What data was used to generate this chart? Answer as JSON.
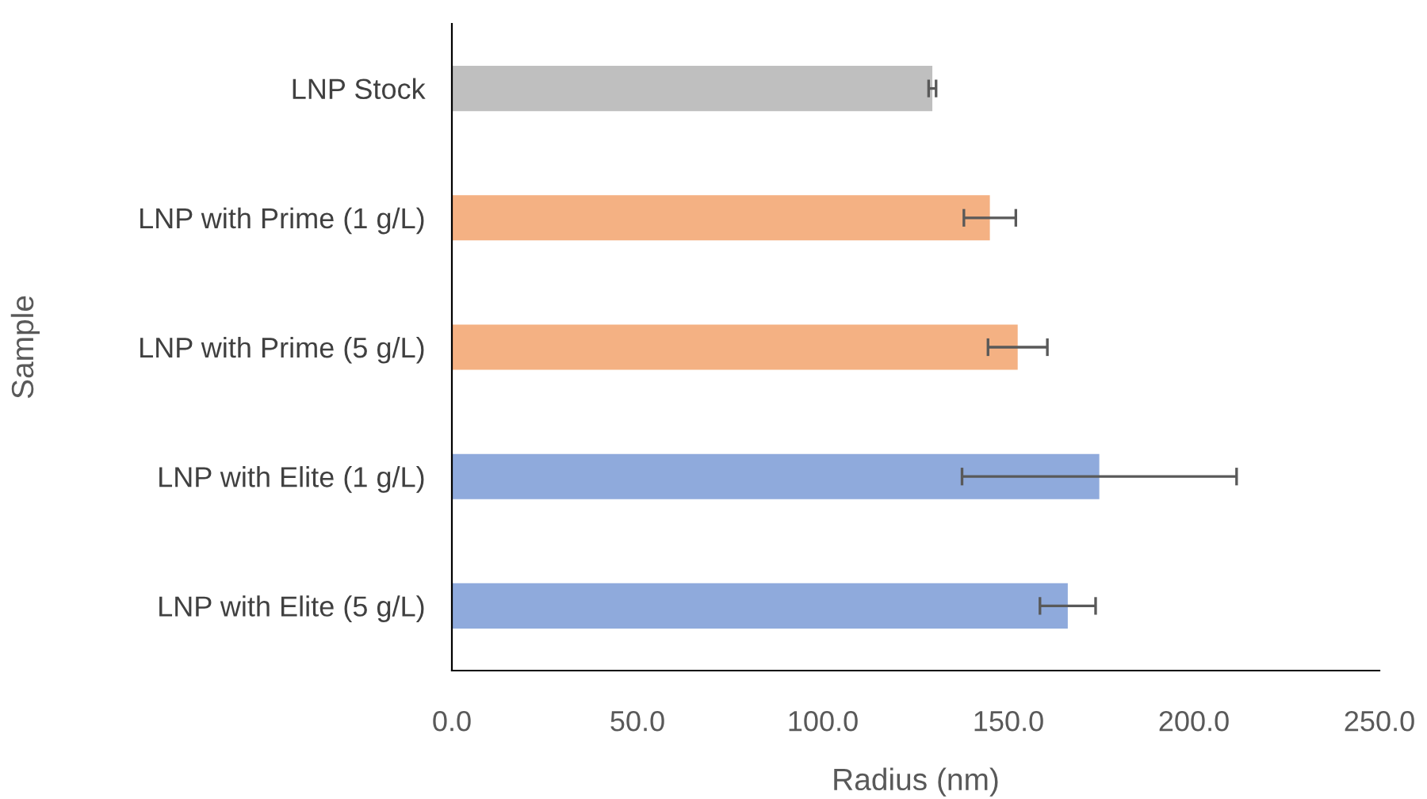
{
  "chart_data": {
    "type": "bar",
    "orientation": "horizontal",
    "xlabel": "Radius (nm)",
    "ylabel": "Sample",
    "categories": [
      "LNP Stock",
      "LNP with Prime (1 g/L)",
      "LNP with Prime (5 g/L)",
      "LNP with Elite (1 g/L)",
      "LNP with Elite (5 g/L)"
    ],
    "values": [
      129.5,
      145,
      152.5,
      174.5,
      166
    ],
    "colors": [
      "#bfbfbf",
      "#f4b183",
      "#f4b183",
      "#8faadc",
      "#8faadc"
    ],
    "errors": [
      1,
      7,
      8,
      37,
      7.5
    ],
    "xlim": [
      0,
      250
    ],
    "xticks": [
      {
        "value": 0,
        "label": "0.0"
      },
      {
        "value": 50,
        "label": "50.0"
      },
      {
        "value": 100,
        "label": "100.0"
      },
      {
        "value": 150,
        "label": "150.0"
      },
      {
        "value": 200,
        "label": "200.0"
      },
      {
        "value": 250,
        "label": "250.0"
      }
    ],
    "grid": false,
    "legend": false
  }
}
